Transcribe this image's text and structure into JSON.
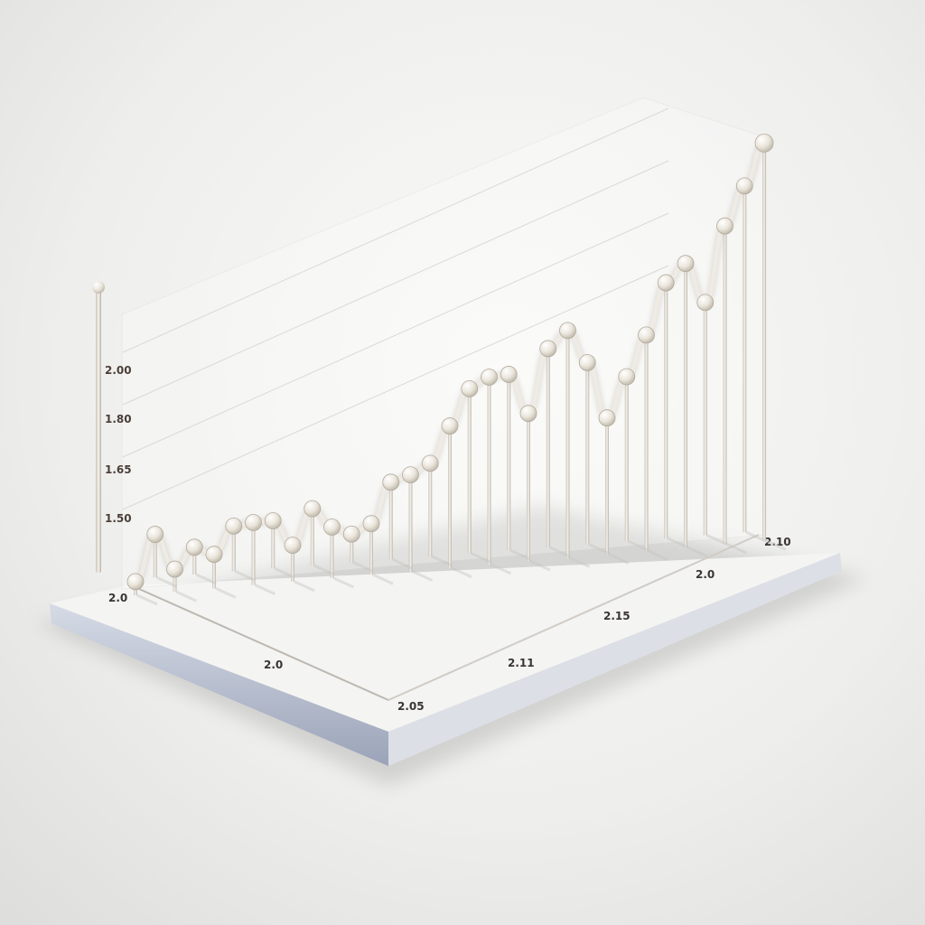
{
  "chart_data": {
    "type": "line",
    "style": "3d-isometric-render",
    "title": "",
    "xlabel": "",
    "ylabel": "",
    "x_tick_labels": [
      "2.0",
      "2.0",
      "2.05",
      "2.11",
      "2.15",
      "2.0",
      "2.10"
    ],
    "y_tick_labels": [
      "2.00",
      "1.80",
      "1.65",
      "1.50"
    ],
    "series": [
      {
        "values": [
          12,
          38,
          20,
          24,
          30,
          40,
          55,
          42,
          32,
          50,
          45,
          25,
          45,
          68,
          85,
          82,
          125,
          145,
          165,
          155,
          130,
          175,
          200,
          160,
          120,
          145,
          190,
          225,
          250,
          205,
          280,
          305,
          350
        ],
        "marker": "sphere",
        "color": "#e9e5dd"
      }
    ],
    "grid": true,
    "legend": "none"
  }
}
